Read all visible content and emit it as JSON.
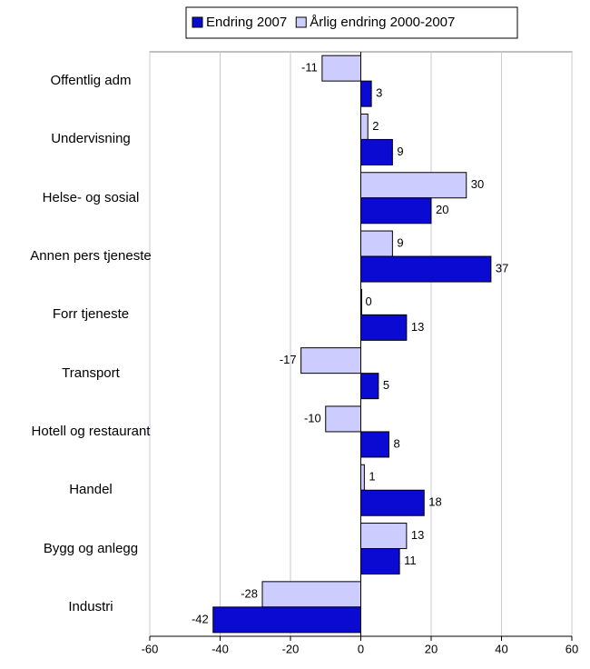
{
  "chart_data": {
    "type": "bar",
    "orientation": "horizontal",
    "categories": [
      "Offentlig adm",
      "Undervisning",
      "Helse- og sosial",
      "Annen pers tjeneste",
      "Forr tjeneste",
      "Transport",
      "Hotell og restaurant",
      "Handel",
      "Bygg og anlegg",
      "Industri"
    ],
    "series": [
      {
        "name": "Endring 2007",
        "color": "#0a0ad2",
        "values": [
          3,
          9,
          20,
          37,
          13,
          5,
          8,
          18,
          11,
          -42
        ]
      },
      {
        "name": "Årlig endring 2000-2007",
        "color": "#ccccff",
        "values": [
          -11,
          2,
          30,
          9,
          0,
          -17,
          -10,
          1,
          13,
          -28
        ]
      }
    ],
    "xlim": [
      -60,
      60
    ],
    "xticks": [
      -60,
      -40,
      -20,
      0,
      20,
      40,
      60
    ],
    "grid": true,
    "legend": "top"
  }
}
